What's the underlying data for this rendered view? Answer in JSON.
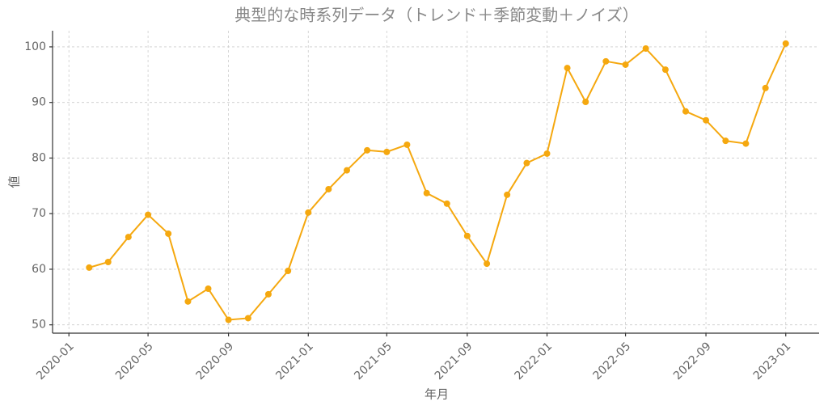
{
  "chart_data": {
    "type": "line",
    "title": "典型的な時系列データ（トレンド＋季節変動＋ノイズ）",
    "x_label": "年月",
    "y_label": "値",
    "x": [
      "2020-02",
      "2020-03",
      "2020-04",
      "2020-05",
      "2020-06",
      "2020-07",
      "2020-08",
      "2020-09",
      "2020-10",
      "2020-11",
      "2020-12",
      "2021-01",
      "2021-02",
      "2021-03",
      "2021-04",
      "2021-05",
      "2021-06",
      "2021-07",
      "2021-08",
      "2021-09",
      "2021-10",
      "2021-11",
      "2021-12",
      "2022-01",
      "2022-02",
      "2022-03",
      "2022-04",
      "2022-05",
      "2022-06",
      "2022-07",
      "2022-08",
      "2022-09",
      "2022-10",
      "2022-11",
      "2022-12",
      "2023-01"
    ],
    "series": [
      {
        "name": "値",
        "color": "#f5a80f",
        "values": [
          60.3,
          61.3,
          65.8,
          69.8,
          66.4,
          54.2,
          56.5,
          50.9,
          51.2,
          55.5,
          59.7,
          70.2,
          74.4,
          77.8,
          81.4,
          81.1,
          82.4,
          73.7,
          71.8,
          66.0,
          61.0,
          73.4,
          79.1,
          80.8,
          96.2,
          90.1,
          97.4,
          96.8,
          99.7,
          95.9,
          88.4,
          86.8,
          83.1,
          82.6,
          92.6,
          100.6
        ]
      }
    ],
    "xlim": [
      "2019-12-07",
      "2023-02-21"
    ],
    "xticks": [
      "2020-01",
      "2020-05",
      "2020-09",
      "2021-01",
      "2021-05",
      "2021-09",
      "2022-01",
      "2022-05",
      "2022-09",
      "2023-01"
    ],
    "ylim": [
      48.5,
      102.9
    ],
    "yticks": [
      50,
      60,
      70,
      80,
      90,
      100
    ],
    "grid": true
  }
}
